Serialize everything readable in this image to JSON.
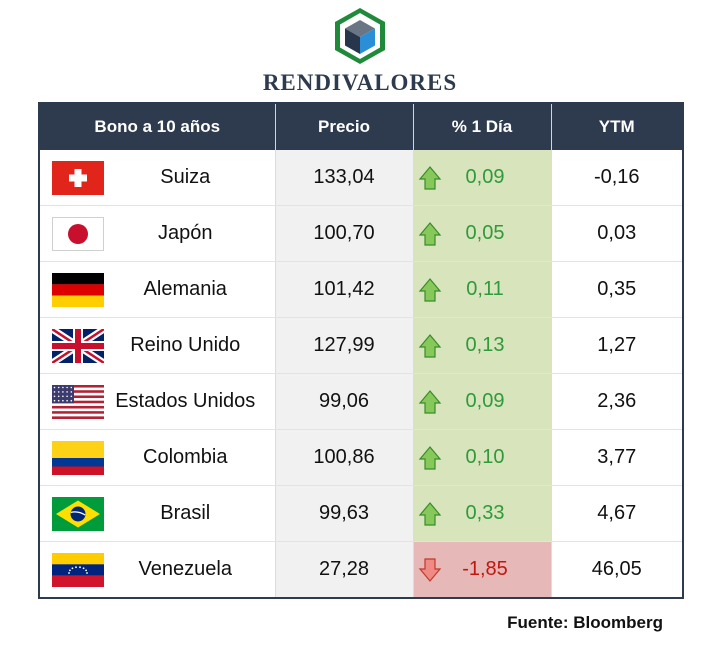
{
  "brand": {
    "name": "RENDIVALORES"
  },
  "table": {
    "headers": [
      "Bono a 10 años",
      "Precio",
      "% 1 Día",
      "YTM"
    ],
    "rows": [
      {
        "pais": "Suiza",
        "flag": "switzerland-flag-icon",
        "precio": "133,04",
        "cambio": "0,09",
        "direccion": "up",
        "ytm": "-0,16"
      },
      {
        "pais": "Japón",
        "flag": "japan-flag-icon",
        "precio": "100,70",
        "cambio": "0,05",
        "direccion": "up",
        "ytm": "0,03"
      },
      {
        "pais": "Alemania",
        "flag": "germany-flag-icon",
        "precio": "101,42",
        "cambio": "0,11",
        "direccion": "up",
        "ytm": "0,35"
      },
      {
        "pais": "Reino Unido",
        "flag": "uk-flag-icon",
        "precio": "127,99",
        "cambio": "0,13",
        "direccion": "up",
        "ytm": "1,27"
      },
      {
        "pais": "Estados Unidos",
        "flag": "usa-flag-icon",
        "precio": "99,06",
        "cambio": "0,09",
        "direccion": "up",
        "ytm": "2,36"
      },
      {
        "pais": "Colombia",
        "flag": "colombia-flag-icon",
        "precio": "100,86",
        "cambio": "0,10",
        "direccion": "up",
        "ytm": "3,77"
      },
      {
        "pais": "Brasil",
        "flag": "brazil-flag-icon",
        "precio": "99,63",
        "cambio": "0,33",
        "direccion": "up",
        "ytm": "4,67"
      },
      {
        "pais": "Venezuela",
        "flag": "venezuela-flag-icon",
        "precio": "27,28",
        "cambio": "-1,85",
        "direccion": "down",
        "ytm": "46,05"
      }
    ]
  },
  "colors": {
    "header": "#2e3a4d",
    "up_bg": "#d8e4bc",
    "up_text": "#2f9a3a",
    "down_bg": "#e6b8b7",
    "down_text": "#c0180f"
  },
  "footer": {
    "source": "Fuente: Bloomberg"
  }
}
